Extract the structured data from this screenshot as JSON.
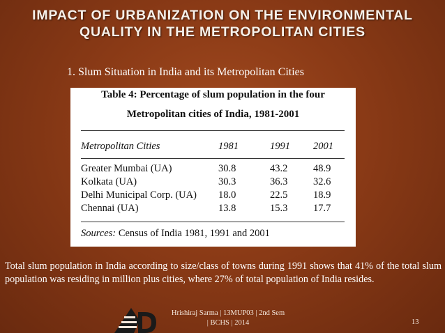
{
  "slide": {
    "title_line1": "Impact of Urbanization on the Environmental",
    "title_line2": "Quality in the Metropolitan Cities",
    "subheading": "1. Slum Situation in India and its Metropolitan Cities",
    "body_text": "Total slum population in India according to size/class of towns during 1991 shows that 41% of the total slum population was residing in million plus cities, where 27% of total population of India resides.",
    "footer_line1": "Hrishiraj Sarma | 13MUP03 | 2nd Sem",
    "footer_line2": "| BCHS | 2014",
    "page_number": "13"
  },
  "table": {
    "caption_line1": "Table 4: Percentage of slum population in the four",
    "caption_line2": "Metropolitan cities of India, 1981-2001",
    "headers": [
      "Metropolitan Cities",
      "1981",
      "1991",
      "2001"
    ],
    "rows": [
      [
        "Greater Mumbai (UA)",
        "30.8",
        "43.2",
        "48.9"
      ],
      [
        "Kolkata (UA)",
        "30.3",
        "36.3",
        "32.6"
      ],
      [
        "Delhi Municipal Corp. (UA)",
        "18.0",
        "22.5",
        "18.9"
      ],
      [
        "Chennai (UA)",
        "13.8",
        "15.3",
        "17.7"
      ]
    ],
    "source_label": "Sources:",
    "source_text": "Census of India 1981, 1991 and 2001"
  }
}
